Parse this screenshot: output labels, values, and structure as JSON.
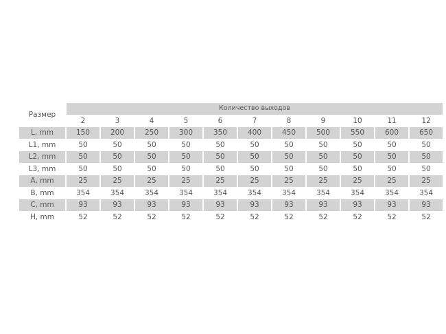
{
  "table": {
    "size_header": "Размер",
    "outlets_header": "Количество выходов",
    "columns": [
      "2",
      "3",
      "4",
      "5",
      "6",
      "7",
      "8",
      "9",
      "10",
      "11",
      "12"
    ],
    "rows": [
      {
        "label": "L, mm",
        "values": [
          "150",
          "200",
          "250",
          "300",
          "350",
          "400",
          "450",
          "500",
          "550",
          "600",
          "650"
        ],
        "shaded": true
      },
      {
        "label": "L1, mm",
        "values": [
          "50",
          "50",
          "50",
          "50",
          "50",
          "50",
          "50",
          "50",
          "50",
          "50",
          "50"
        ],
        "shaded": false
      },
      {
        "label": "L2, mm",
        "values": [
          "50",
          "50",
          "50",
          "50",
          "50",
          "50",
          "50",
          "50",
          "50",
          "50",
          "50"
        ],
        "shaded": true
      },
      {
        "label": "L3, mm",
        "values": [
          "50",
          "50",
          "50",
          "50",
          "50",
          "50",
          "50",
          "50",
          "50",
          "50",
          "50"
        ],
        "shaded": false
      },
      {
        "label": "A, mm",
        "values": [
          "25",
          "25",
          "25",
          "25",
          "25",
          "25",
          "25",
          "25",
          "25",
          "25",
          "25"
        ],
        "shaded": true
      },
      {
        "label": "B, mm",
        "values": [
          "354",
          "354",
          "354",
          "354",
          "354",
          "354",
          "354",
          "354",
          "354",
          "354",
          "354"
        ],
        "shaded": false
      },
      {
        "label": "C, mm",
        "values": [
          "93",
          "93",
          "93",
          "93",
          "93",
          "93",
          "93",
          "93",
          "93",
          "93",
          "93"
        ],
        "shaded": true
      },
      {
        "label": "H, mm",
        "values": [
          "52",
          "52",
          "52",
          "52",
          "52",
          "52",
          "52",
          "52",
          "52",
          "52",
          "52"
        ],
        "shaded": false
      }
    ]
  }
}
